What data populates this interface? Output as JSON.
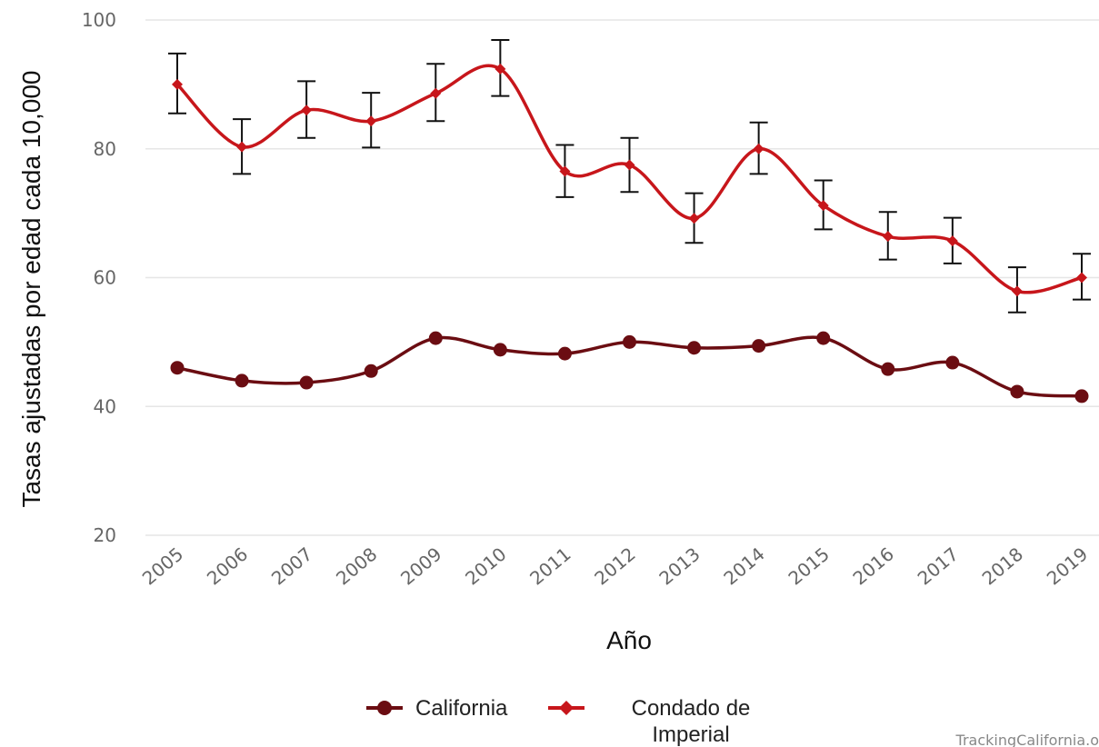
{
  "chart_data": {
    "type": "line",
    "xlabel": "Año",
    "ylabel": "Tasas ajustadas por edad cada 10,000",
    "ylim": [
      20,
      100
    ],
    "yticks": [
      20,
      40,
      60,
      80,
      100
    ],
    "grid": true,
    "legend_position": "bottom",
    "categories": [
      "2005",
      "2006",
      "2007",
      "2008",
      "2009",
      "2010",
      "2011",
      "2012",
      "2013",
      "2014",
      "2015",
      "2016",
      "2017",
      "2018",
      "2019"
    ],
    "series": [
      {
        "name": "California",
        "color": "#6b0d12",
        "marker": "circle",
        "values": [
          46.0,
          44.0,
          43.7,
          45.5,
          50.6,
          48.8,
          48.2,
          50.0,
          49.1,
          49.4,
          50.6,
          45.8,
          46.8,
          42.3,
          41.6
        ]
      },
      {
        "name": "Condado de Imperial",
        "color": "#c7161b",
        "marker": "diamond",
        "values": [
          90.0,
          80.3,
          86.0,
          84.3,
          88.6,
          92.4,
          76.5,
          77.5,
          69.2,
          80.0,
          71.2,
          66.4,
          65.7,
          57.9,
          60.0
        ],
        "error_low": [
          85.5,
          76.1,
          81.7,
          80.2,
          84.3,
          88.2,
          72.5,
          73.3,
          65.4,
          76.1,
          67.5,
          62.8,
          62.2,
          54.6,
          56.6
        ],
        "error_high": [
          94.8,
          84.6,
          90.5,
          88.7,
          93.2,
          96.9,
          80.6,
          81.7,
          73.1,
          84.1,
          75.1,
          70.2,
          69.3,
          61.6,
          63.7
        ]
      }
    ]
  },
  "legend": {
    "california": "California",
    "imperial_line1": "Condado de",
    "imperial_line2": "Imperial"
  },
  "credit": "TrackingCalifornia.o"
}
